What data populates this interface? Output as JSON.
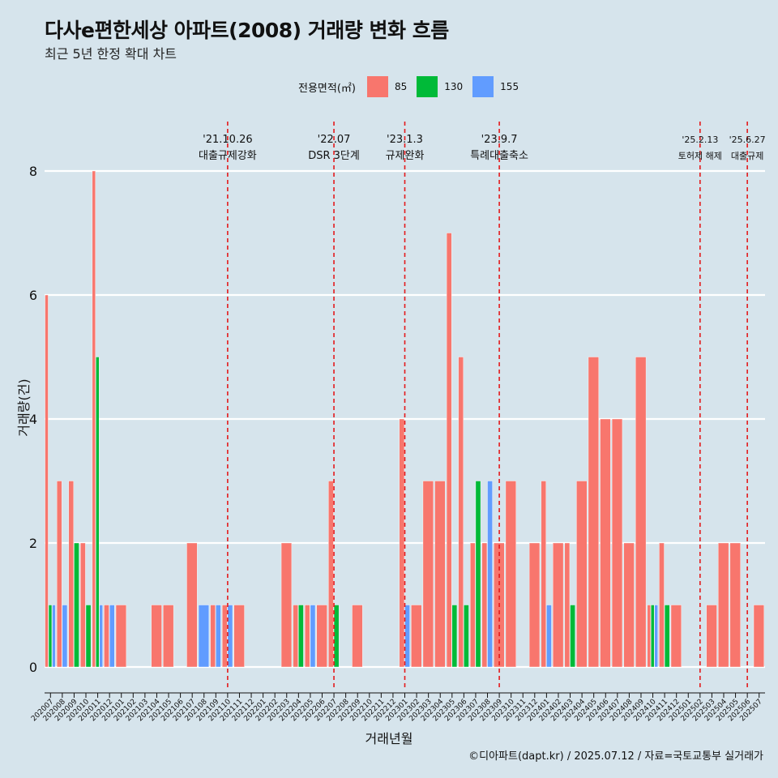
{
  "header": {
    "title": "다사e편한세상 아파트(2008) 거래량 변화 흐름",
    "subtitle": "최근 5년 한정 확대 차트"
  },
  "legend": {
    "title": "전용면적(㎡)",
    "items": [
      {
        "label": "85",
        "color": "#f8766d"
      },
      {
        "label": "130",
        "color": "#00ba38"
      },
      {
        "label": "155",
        "color": "#619cff"
      }
    ]
  },
  "footer": {
    "caption": "©디아파트(dapt.kr) / 2025.07.12 / 자료=국토교통부 실거래가"
  },
  "chart_data": {
    "type": "bar",
    "xlabel": "거래년월",
    "ylabel": "거래량(건)",
    "ylim": [
      0,
      8
    ],
    "yticks": [
      0,
      2,
      4,
      6,
      8
    ],
    "grid": true,
    "legend_position": "top",
    "categories": [
      "202007",
      "202008",
      "202009",
      "202010",
      "202011",
      "202012",
      "202101",
      "202102",
      "202103",
      "202104",
      "202105",
      "202106",
      "202107",
      "202108",
      "202109",
      "202110",
      "202111",
      "202112",
      "202201",
      "202202",
      "202203",
      "202204",
      "202205",
      "202206",
      "202207",
      "202208",
      "202209",
      "202210",
      "202211",
      "202212",
      "202301",
      "202302",
      "202303",
      "202304",
      "202305",
      "202306",
      "202307",
      "202308",
      "202309",
      "202310",
      "202311",
      "202312",
      "202401",
      "202402",
      "202403",
      "202404",
      "202405",
      "202406",
      "202407",
      "202408",
      "202409",
      "202410",
      "202411",
      "202412",
      "202501",
      "202502",
      "202503",
      "202504",
      "202505",
      "202506",
      "202507"
    ],
    "series": [
      {
        "name": "85",
        "color": "#f8766d",
        "values": [
          6,
          3,
          3,
          2,
          8,
          1,
          1,
          0,
          0,
          1,
          1,
          0,
          2,
          0,
          1,
          1,
          1,
          0,
          0,
          0,
          2,
          1,
          1,
          1,
          3,
          0,
          1,
          0,
          0,
          0,
          4,
          1,
          3,
          3,
          7,
          5,
          2,
          2,
          2,
          3,
          0,
          2,
          3,
          2,
          2,
          3,
          5,
          4,
          4,
          2,
          5,
          1,
          2,
          1,
          0,
          0,
          1,
          2,
          2,
          0,
          1
        ]
      },
      {
        "name": "130",
        "color": "#00ba38",
        "values": [
          1,
          0,
          2,
          1,
          5,
          0,
          0,
          0,
          0,
          0,
          0,
          0,
          0,
          0,
          0,
          0,
          0,
          0,
          0,
          0,
          0,
          1,
          0,
          0,
          1,
          0,
          0,
          0,
          0,
          0,
          0,
          0,
          0,
          0,
          1,
          1,
          3,
          0,
          0,
          0,
          0,
          0,
          0,
          0,
          1,
          0,
          0,
          0,
          0,
          0,
          0,
          1,
          1,
          0,
          0,
          0,
          0,
          0,
          0,
          0,
          0
        ]
      },
      {
        "name": "155",
        "color": "#619cff",
        "values": [
          1,
          1,
          0,
          0,
          1,
          1,
          0,
          0,
          0,
          0,
          0,
          0,
          0,
          1,
          1,
          1,
          0,
          0,
          0,
          0,
          0,
          0,
          1,
          0,
          0,
          0,
          0,
          0,
          0,
          0,
          1,
          0,
          0,
          0,
          0,
          0,
          0,
          3,
          0,
          0,
          0,
          0,
          1,
          0,
          0,
          0,
          0,
          0,
          0,
          0,
          0,
          1,
          0,
          0,
          0,
          0,
          0,
          0,
          0,
          0,
          0
        ]
      }
    ],
    "annotations": [
      {
        "x": "202110",
        "date": "'21.10.26",
        "label": "대출규제강화"
      },
      {
        "x": "202207",
        "date": "'22.07",
        "label": "DSR 3단계"
      },
      {
        "x": "202301",
        "date": "'23.1.3",
        "label": "규제완화"
      },
      {
        "x": "202309",
        "date": "'23.9.7",
        "label": "특례대출축소"
      },
      {
        "x": "202502",
        "date": "'25.2.13",
        "label": "토허제 해제"
      },
      {
        "x": "202506",
        "date": "'25.6.27",
        "label": "대출규제"
      }
    ]
  }
}
